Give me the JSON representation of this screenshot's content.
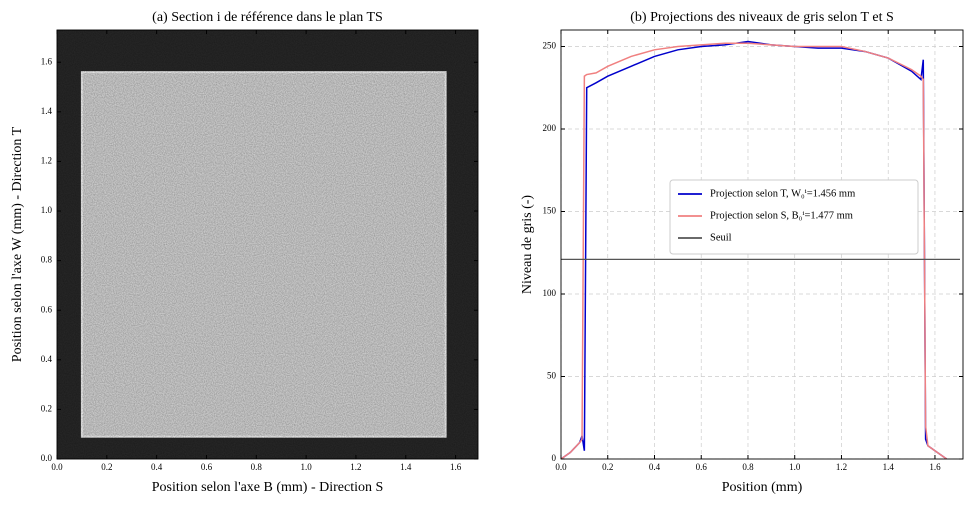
{
  "chart_data": [
    {
      "type": "image",
      "title": "(a) Section i de référence dans le plan TS",
      "xlabel": "Position selon l'axe B (mm) - Direction S",
      "ylabel": "Position selon l'axe W (mm) - Direction T",
      "xlim": [
        0,
        1.69
      ],
      "ylim": [
        0,
        1.73
      ],
      "xticks": [
        {
          "value": 0,
          "label": "0.0"
        },
        0.2,
        0.4,
        0.6,
        0.8,
        {
          "value": 1,
          "label": "1.0"
        },
        1.2,
        1.4,
        1.6
      ],
      "yticks": [
        {
          "value": 0,
          "label": "0.0"
        },
        0.2,
        0.4,
        0.6,
        0.8,
        {
          "value": 1,
          "label": "1.0"
        },
        1.2,
        1.4,
        1.6
      ]
    },
    {
      "type": "line",
      "title": "(b) Projections des niveaux de gris selon T et S",
      "xlabel": "Position (mm)",
      "ylabel": "Niveau de gris (-)",
      "xlim": [
        0,
        1.72
      ],
      "ylim": [
        0,
        260
      ],
      "xticks": [
        {
          "value": 0,
          "label": "0.0"
        },
        0.2,
        0.4,
        0.6,
        0.8,
        {
          "value": 1,
          "label": "1.0"
        },
        1.2,
        1.4,
        1.6
      ],
      "yticks": [
        0,
        50,
        100,
        150,
        200,
        250
      ],
      "grid": true,
      "legend": "center right",
      "x": [
        0,
        0.04,
        0.08,
        0.09,
        0.1,
        0.11,
        0.15,
        0.2,
        0.3,
        0.4,
        0.5,
        0.6,
        0.7,
        0.8,
        0.9,
        1.0,
        1.1,
        1.2,
        1.3,
        1.4,
        1.5,
        1.54,
        1.55,
        1.56,
        1.57,
        1.6,
        1.65
      ],
      "series": [
        {
          "name": "Projection selon T, W₀ⁱ=1.456 mm",
          "color": "#0000cc",
          "values": [
            0,
            4,
            10,
            14,
            5,
            225,
            228,
            232,
            238,
            244,
            248,
            250,
            251,
            253,
            251,
            250,
            249,
            249,
            247,
            243,
            235,
            230,
            242,
            12,
            8,
            5,
            0
          ]
        },
        {
          "name": "Projection selon S, B₀ⁱ=1.477 mm",
          "color": "#f08080",
          "values": [
            0,
            4,
            10,
            12,
            232,
            233,
            234,
            238,
            244,
            248,
            250,
            251,
            252,
            252,
            251,
            250,
            250,
            250,
            247,
            243,
            236,
            232,
            230,
            20,
            8,
            5,
            0
          ]
        },
        {
          "name": "Seuil",
          "color": "#555555",
          "level": 121
        }
      ]
    }
  ]
}
